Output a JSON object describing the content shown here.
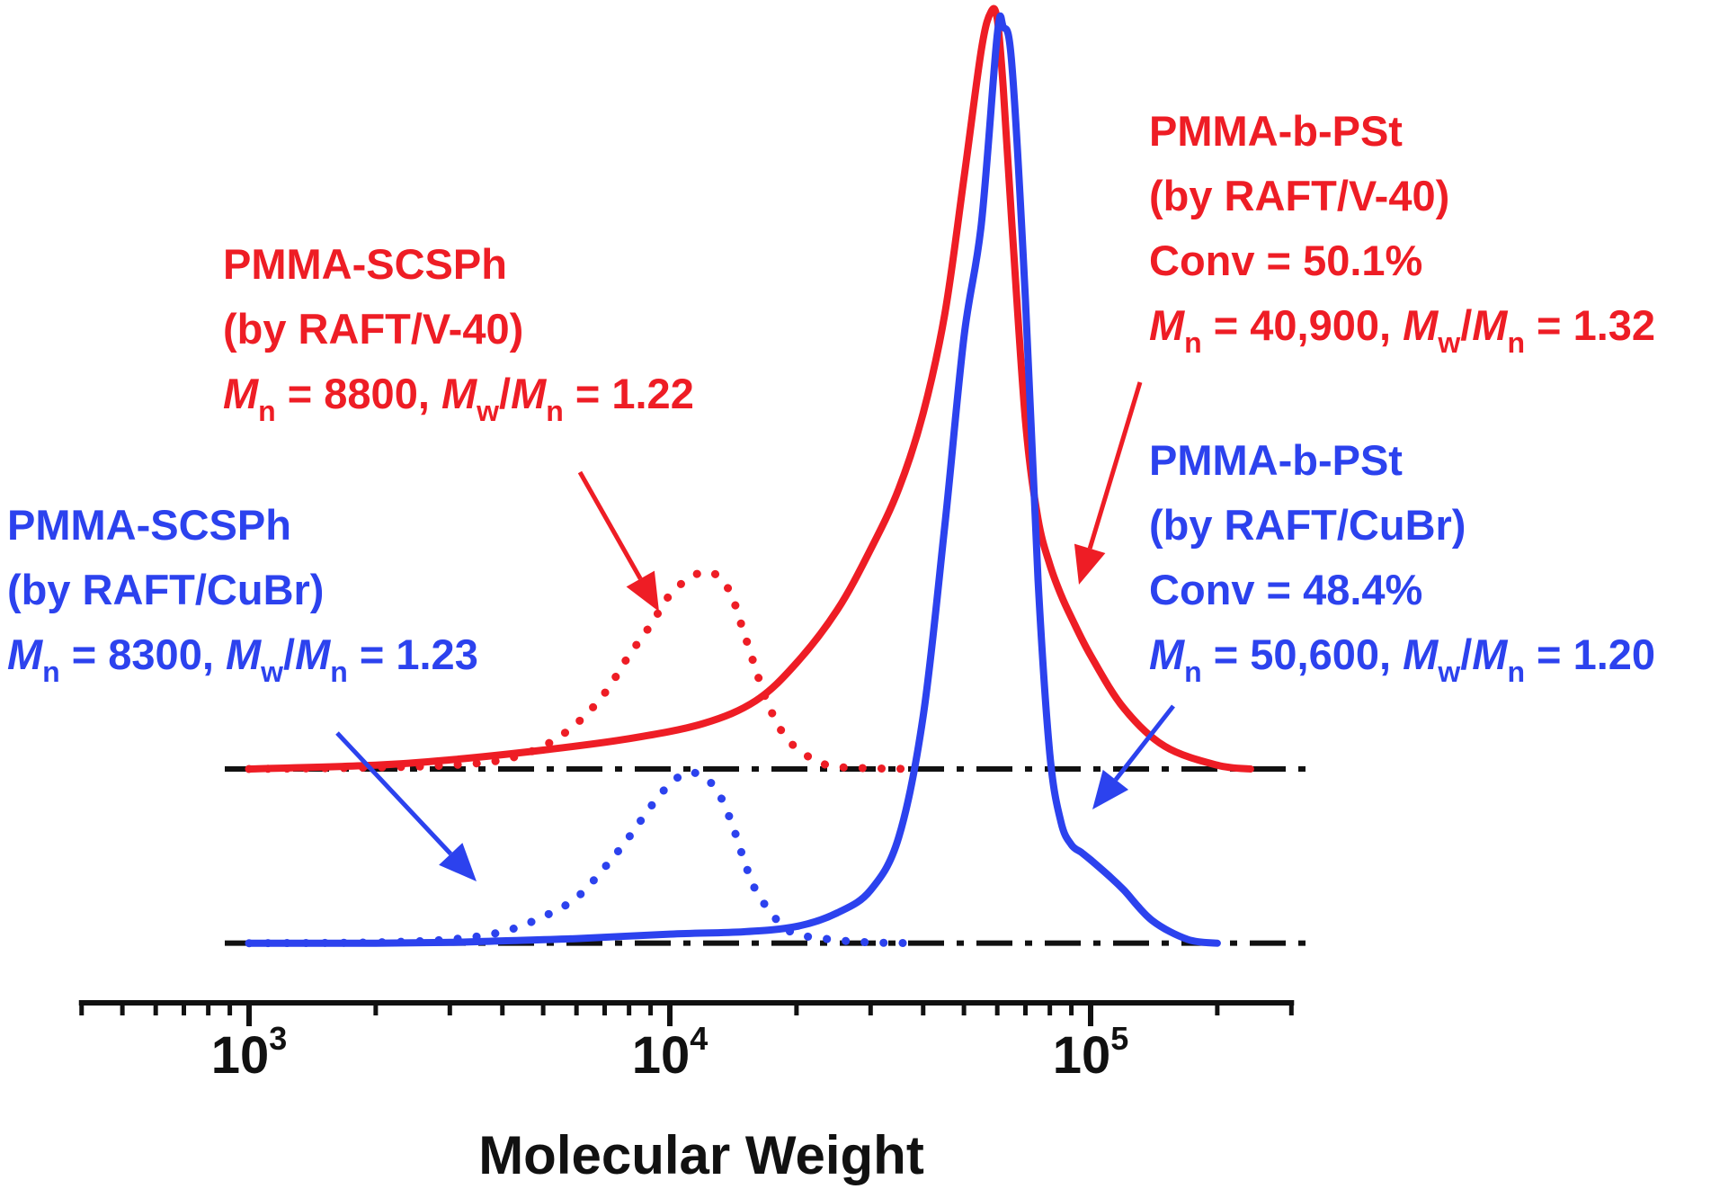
{
  "chart_data": {
    "type": "line",
    "x_scale": "log",
    "xlim": [
      400,
      300000
    ],
    "xlabel": "Molecular Weight",
    "ylabel": "",
    "grid": false,
    "x_ticks": [
      {
        "base": "10",
        "exp": "3",
        "value": 1000
      },
      {
        "base": "10",
        "exp": "4",
        "value": 10000
      },
      {
        "base": "10",
        "exp": "5",
        "value": 100000
      }
    ],
    "baselines": [
      {
        "name": "red-baseline",
        "y": 0,
        "x_range": [
          1000,
          300000
        ]
      },
      {
        "name": "blue-baseline",
        "y": -0.23,
        "x_range": [
          1000,
          300000
        ]
      }
    ],
    "series": [
      {
        "name": "PMMA-b-PSt (by RAFT/V-40)",
        "color": "#ee1d25",
        "style": "solid",
        "offset": 0,
        "x": [
          1000,
          2000,
          3000,
          5000,
          8000,
          12000,
          16000,
          20000,
          25000,
          30000,
          35000,
          40000,
          45000,
          50000,
          55000,
          58000,
          60000,
          62000,
          65000,
          70000,
          75000,
          80000,
          85000,
          90000,
          100000,
          120000,
          150000,
          200000,
          240000
        ],
        "y": [
          0,
          0.005,
          0.012,
          0.025,
          0.04,
          0.06,
          0.09,
          0.14,
          0.21,
          0.29,
          0.37,
          0.47,
          0.6,
          0.78,
          0.95,
          1.0,
          0.99,
          0.9,
          0.72,
          0.46,
          0.33,
          0.27,
          0.23,
          0.2,
          0.15,
          0.08,
          0.03,
          0.005,
          0
        ]
      },
      {
        "name": "PMMA-SCSPh (by RAFT/V-40)",
        "color": "#ee1d25",
        "style": "dotted",
        "offset": 0,
        "x": [
          1000,
          2000,
          3000,
          4000,
          5000,
          6000,
          7000,
          8000,
          9000,
          10000,
          11000,
          12000,
          13000,
          14000,
          15000,
          17000,
          19000,
          22000,
          25000,
          30000,
          38000
        ],
        "y": [
          0,
          0.002,
          0.005,
          0.012,
          0.03,
          0.06,
          0.1,
          0.15,
          0.19,
          0.23,
          0.25,
          0.26,
          0.255,
          0.23,
          0.18,
          0.09,
          0.04,
          0.012,
          0.003,
          0.001,
          0
        ]
      },
      {
        "name": "PMMA-b-PSt (by RAFT/CuBr)",
        "color": "#2c42ee",
        "style": "solid",
        "offset": -0.23,
        "x": [
          1000,
          2000,
          3000,
          4000,
          6000,
          10000,
          15000,
          20000,
          25000,
          30000,
          35000,
          40000,
          45000,
          50000,
          55000,
          60000,
          62000,
          65000,
          70000,
          75000,
          80000,
          85000,
          90000,
          95000,
          100000,
          110000,
          120000,
          140000,
          170000,
          200000
        ],
        "y": [
          0,
          0,
          0.001,
          0.003,
          0.006,
          0.012,
          0.015,
          0.022,
          0.04,
          0.07,
          0.14,
          0.3,
          0.55,
          0.8,
          0.95,
          1.2,
          1.21,
          1.16,
          0.85,
          0.48,
          0.25,
          0.16,
          0.13,
          0.12,
          0.11,
          0.09,
          0.07,
          0.03,
          0.005,
          0
        ]
      },
      {
        "name": "PMMA-SCSPh (by RAFT/CuBr)",
        "color": "#2c42ee",
        "style": "dotted",
        "offset": -0.23,
        "x": [
          1000,
          2000,
          3000,
          4000,
          5000,
          6000,
          7000,
          8000,
          9000,
          10000,
          11000,
          12000,
          13000,
          14000,
          15000,
          16000,
          18000,
          20000,
          25000,
          30000,
          38000
        ],
        "y": [
          0,
          0.001,
          0.005,
          0.015,
          0.035,
          0.06,
          0.1,
          0.14,
          0.18,
          0.21,
          0.225,
          0.22,
          0.2,
          0.16,
          0.11,
          0.07,
          0.03,
          0.012,
          0.004,
          0.001,
          0
        ]
      }
    ],
    "annotations": [
      {
        "name": "red-scsph",
        "color": "#ee1d25",
        "target_series": 1,
        "lines": [
          "PMMA-SCSPh",
          "(by RAFT/V-40)"
        ],
        "mn": "8800",
        "pdi": "1.22"
      },
      {
        "name": "blue-scsph",
        "color": "#2c42ee",
        "target_series": 3,
        "lines": [
          "PMMA-SCSPh",
          "(by RAFT/CuBr)"
        ],
        "mn": "8300",
        "pdi": "1.23"
      },
      {
        "name": "red-block",
        "color": "#ee1d25",
        "target_series": 0,
        "lines": [
          "PMMA-b-PSt",
          "(by RAFT/V-40)",
          "Conv = 50.1%"
        ],
        "mn": "40,900",
        "pdi": "1.32"
      },
      {
        "name": "blue-block",
        "color": "#2c42ee",
        "target_series": 2,
        "lines": [
          "PMMA-b-PSt",
          "(by RAFT/CuBr)",
          "Conv = 48.4%"
        ],
        "mn": "50,600",
        "pdi": "1.20"
      }
    ]
  },
  "mn_symbol": "M",
  "mn_sub": "n",
  "mw_sub": "w"
}
